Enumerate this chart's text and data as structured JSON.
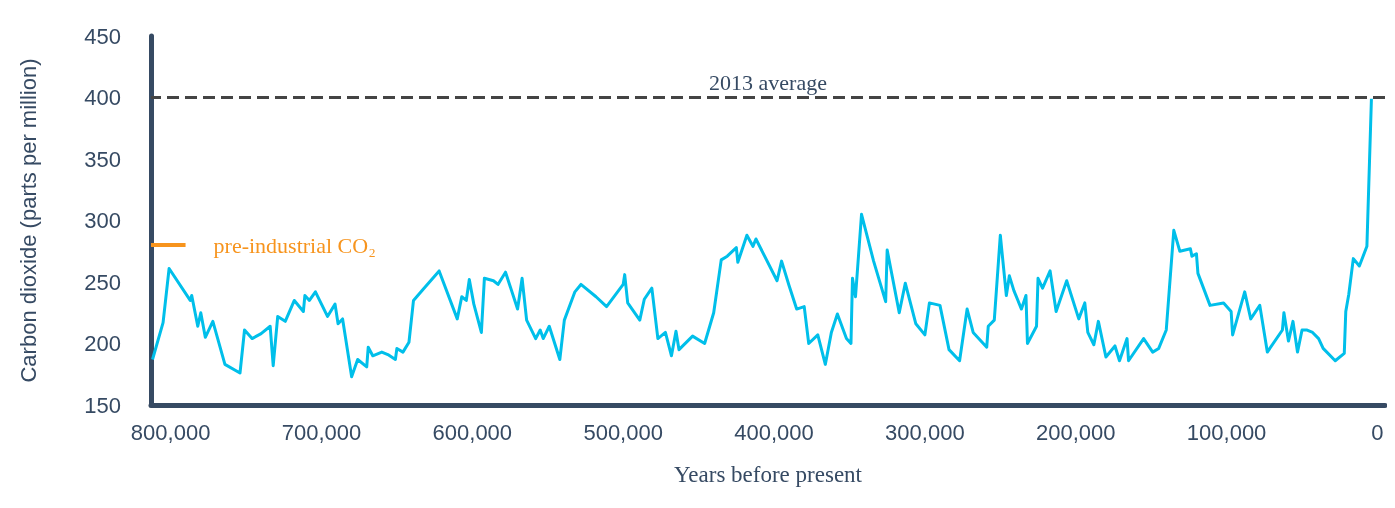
{
  "chart_data": {
    "type": "line",
    "xlabel": "Years before present",
    "ylabel": "Carbon dioxide (parts per million)",
    "xlim": [
      813000,
      -5000
    ],
    "ylim": [
      150,
      450
    ],
    "xticks": [
      {
        "value": 800000,
        "label": "800,000"
      },
      {
        "value": 700000,
        "label": "700,000"
      },
      {
        "value": 600000,
        "label": "600,000"
      },
      {
        "value": 500000,
        "label": "500,000"
      },
      {
        "value": 400000,
        "label": "400,000"
      },
      {
        "value": 300000,
        "label": "300,000"
      },
      {
        "value": 200000,
        "label": "200,000"
      },
      {
        "value": 100000,
        "label": "100,000"
      },
      0
    ],
    "yticks": [
      150,
      200,
      250,
      300,
      350,
      400,
      450
    ],
    "marker": "none",
    "line_style": "solid",
    "series": [
      {
        "color": "#00bfea",
        "x": [
          812000,
          805000,
          801000,
          787000,
          786000,
          782000,
          780000,
          777000,
          772000,
          764000,
          754000,
          751000,
          746000,
          740000,
          734000,
          732000,
          729000,
          724000,
          718000,
          712000,
          711000,
          708000,
          704000,
          696000,
          691000,
          689000,
          686000,
          680000,
          676000,
          670000,
          669000,
          666000,
          660000,
          656000,
          651000,
          650000,
          646000,
          642000,
          639000,
          632000,
          622000,
          610000,
          607000,
          604000,
          602000,
          599000,
          594000,
          592000,
          586000,
          583000,
          578000,
          570000,
          567000,
          564000,
          558000,
          555000,
          553000,
          549000,
          542000,
          539000,
          532000,
          528000,
          518000,
          511000,
          500000,
          499000,
          497000,
          489000,
          486000,
          481000,
          477000,
          472000,
          468000,
          465000,
          463000,
          454000,
          446000,
          440000,
          435000,
          431000,
          425000,
          424000,
          418000,
          414000,
          412000,
          398000,
          395000,
          390000,
          385000,
          380000,
          377000,
          371000,
          366000,
          362000,
          358000,
          352000,
          349000,
          348000,
          346000,
          342000,
          334000,
          326000,
          325000,
          317000,
          313000,
          306000,
          300000,
          297000,
          290000,
          284000,
          277000,
          272000,
          268000,
          259000,
          258000,
          254000,
          250000,
          246000,
          244000,
          241000,
          236000,
          233000,
          232000,
          226000,
          225000,
          222000,
          217000,
          213000,
          206000,
          198000,
          194000,
          192000,
          188000,
          185000,
          180000,
          174000,
          171000,
          166000,
          165000,
          155000,
          149000,
          145000,
          140000,
          135000,
          131000,
          124000,
          123000,
          120000,
          119000,
          111000,
          102000,
          97000,
          96000,
          88000,
          84000,
          78000,
          73000,
          63000,
          62000,
          59000,
          56000,
          53000,
          50000,
          47000,
          43000,
          39000,
          36000,
          28000,
          22000,
          21000,
          19000,
          16000,
          12000,
          7000,
          4000
        ],
        "values": [
          187,
          217,
          261,
          235,
          239,
          214,
          225,
          205,
          218,
          183,
          176,
          211,
          204,
          208,
          214,
          182,
          222,
          218,
          235,
          226,
          239,
          235,
          242,
          222,
          232,
          216,
          220,
          173,
          187,
          181,
          197,
          190,
          193,
          191,
          187,
          196,
          193,
          201,
          235,
          245,
          259,
          220,
          238,
          235,
          252,
          232,
          209,
          253,
          251,
          248,
          258,
          228,
          253,
          219,
          204,
          211,
          204,
          214,
          187,
          219,
          242,
          248,
          238,
          230,
          248,
          256,
          233,
          219,
          236,
          245,
          204,
          209,
          190,
          210,
          195,
          206,
          200,
          225,
          268,
          271,
          278,
          266,
          288,
          279,
          285,
          251,
          267,
          247,
          228,
          230,
          200,
          207,
          183,
          209,
          224,
          204,
          200,
          253,
          238,
          305,
          267,
          234,
          276,
          225,
          249,
          216,
          207,
          233,
          231,
          195,
          186,
          228,
          209,
          197,
          214,
          219,
          288,
          239,
          255,
          243,
          228,
          239,
          200,
          214,
          253,
          245,
          259,
          226,
          251,
          220,
          233,
          209,
          199,
          218,
          189,
          198,
          186,
          204,
          186,
          204,
          193,
          196,
          211,
          292,
          275,
          277,
          271,
          273,
          257,
          231,
          233,
          226,
          207,
          242,
          220,
          231,
          193,
          211,
          225,
          202,
          218,
          193,
          211,
          211,
          209,
          204,
          196,
          186,
          192,
          226,
          240,
          269,
          263,
          279,
          399
        ]
      }
    ],
    "ref_lines": [
      {
        "axis": "y",
        "value": 400,
        "label": "2013 average",
        "color": "#444444",
        "line_style": "dashed"
      },
      {
        "axis": "y",
        "value": 280,
        "label": "pre-industrial CO₂",
        "color": "#f7941d",
        "line_style": "solid"
      }
    ]
  }
}
